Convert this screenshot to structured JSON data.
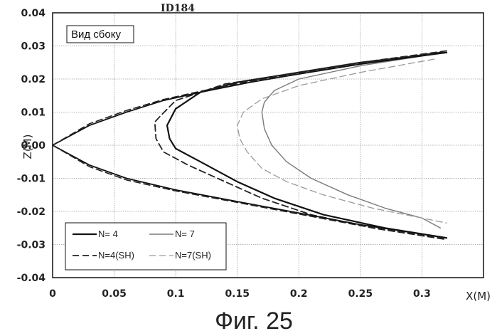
{
  "chart_data": {
    "type": "line",
    "title": "ID184",
    "annotation": "Вид сбоку",
    "xlabel": "X(M)",
    "ylabel": "Z(M)",
    "xlim": [
      0,
      0.35
    ],
    "ylim": [
      -0.04,
      0.04
    ],
    "xticks": [
      "0",
      "0.05",
      "0.1",
      "0.15",
      "0.2",
      "0.25",
      "0.3"
    ],
    "yticks": [
      "0.04",
      "0.03",
      "0.02",
      "0.01",
      "0.00",
      "-0.01",
      "-0.02",
      "-0.03",
      "-0.04"
    ],
    "grid": true,
    "legend_position": "bottom-left",
    "series": [
      {
        "name": "N= 4",
        "style": "solid",
        "color": "#111111",
        "width": 2.2,
        "points": [
          [
            0.32,
            0.028
          ],
          [
            0.25,
            0.025
          ],
          [
            0.2,
            0.022
          ],
          [
            0.15,
            0.019
          ],
          [
            0.12,
            0.016
          ],
          [
            0.1,
            0.011
          ],
          [
            0.093,
            0.006
          ],
          [
            0.095,
            0.002
          ],
          [
            0.1,
            -0.001
          ],
          [
            0.12,
            -0.005
          ],
          [
            0.15,
            -0.011
          ],
          [
            0.18,
            -0.016
          ],
          [
            0.22,
            -0.021
          ],
          [
            0.27,
            -0.025
          ],
          [
            0.32,
            -0.028
          ]
        ]
      },
      {
        "name": "N=4(SH)",
        "style": "dashed",
        "color": "#222222",
        "width": 1.8,
        "points": [
          [
            0.32,
            0.0285
          ],
          [
            0.25,
            0.025
          ],
          [
            0.2,
            0.022
          ],
          [
            0.14,
            0.0185
          ],
          [
            0.1,
            0.0135
          ],
          [
            0.088,
            0.009
          ],
          [
            0.083,
            0.007
          ],
          [
            0.084,
            0.002
          ],
          [
            0.09,
            -0.002
          ],
          [
            0.11,
            -0.006
          ],
          [
            0.14,
            -0.011
          ],
          [
            0.17,
            -0.016
          ],
          [
            0.21,
            -0.021
          ],
          [
            0.26,
            -0.025
          ],
          [
            0.32,
            -0.0285
          ]
        ]
      },
      {
        "name": "N= 7",
        "style": "solid",
        "color": "#7a7a7a",
        "width": 1.4,
        "points": [
          [
            0.31,
            0.0275
          ],
          [
            0.25,
            0.024
          ],
          [
            0.2,
            0.02
          ],
          [
            0.18,
            0.0165
          ],
          [
            0.172,
            0.013
          ],
          [
            0.17,
            0.01
          ],
          [
            0.172,
            0.005
          ],
          [
            0.178,
            0.0
          ],
          [
            0.19,
            -0.005
          ],
          [
            0.21,
            -0.01
          ],
          [
            0.24,
            -0.015
          ],
          [
            0.27,
            -0.019
          ],
          [
            0.3,
            -0.022
          ],
          [
            0.315,
            -0.025
          ]
        ]
      },
      {
        "name": "N=7(SH)",
        "style": "dashed",
        "color": "#9a9a9a",
        "width": 1.3,
        "points": [
          [
            0.31,
            0.026
          ],
          [
            0.25,
            0.022
          ],
          [
            0.2,
            0.018
          ],
          [
            0.17,
            0.014
          ],
          [
            0.155,
            0.01
          ],
          [
            0.15,
            0.006
          ],
          [
            0.152,
            0.002
          ],
          [
            0.158,
            -0.002
          ],
          [
            0.17,
            -0.007
          ],
          [
            0.19,
            -0.011
          ],
          [
            0.22,
            -0.015
          ],
          [
            0.26,
            -0.019
          ],
          [
            0.3,
            -0.022
          ],
          [
            0.32,
            -0.0235
          ]
        ]
      },
      {
        "name": "",
        "style": "solid",
        "color": "#111111",
        "width": 1.8,
        "points": [
          [
            0,
            0
          ],
          [
            0.03,
            0.006
          ],
          [
            0.06,
            0.01
          ],
          [
            0.09,
            0.0135
          ],
          [
            0.12,
            0.016
          ],
          [
            0.16,
            0.019
          ],
          [
            0.2,
            0.0215
          ],
          [
            0.25,
            0.0245
          ],
          [
            0.32,
            0.028
          ]
        ]
      },
      {
        "name": "",
        "style": "dashed",
        "color": "#222222",
        "width": 1.6,
        "points": [
          [
            0,
            0
          ],
          [
            0.03,
            0.0065
          ],
          [
            0.06,
            0.0105
          ],
          [
            0.09,
            0.0138
          ],
          [
            0.12,
            0.0163
          ],
          [
            0.16,
            0.0193
          ],
          [
            0.2,
            0.0218
          ],
          [
            0.25,
            0.0248
          ],
          [
            0.32,
            0.0283
          ]
        ]
      },
      {
        "name": "",
        "style": "solid",
        "color": "#111111",
        "width": 1.8,
        "points": [
          [
            0,
            0
          ],
          [
            0.03,
            -0.006
          ],
          [
            0.06,
            -0.01
          ],
          [
            0.1,
            -0.0135
          ],
          [
            0.15,
            -0.017
          ],
          [
            0.2,
            -0.0205
          ],
          [
            0.25,
            -0.024
          ],
          [
            0.32,
            -0.028
          ]
        ]
      },
      {
        "name": "",
        "style": "dashed",
        "color": "#222222",
        "width": 1.6,
        "points": [
          [
            0,
            0
          ],
          [
            0.03,
            -0.0065
          ],
          [
            0.06,
            -0.0105
          ],
          [
            0.1,
            -0.0138
          ],
          [
            0.15,
            -0.0173
          ],
          [
            0.2,
            -0.0208
          ],
          [
            0.25,
            -0.0243
          ],
          [
            0.32,
            -0.0283
          ]
        ]
      }
    ]
  },
  "caption": "Фиг. 25"
}
